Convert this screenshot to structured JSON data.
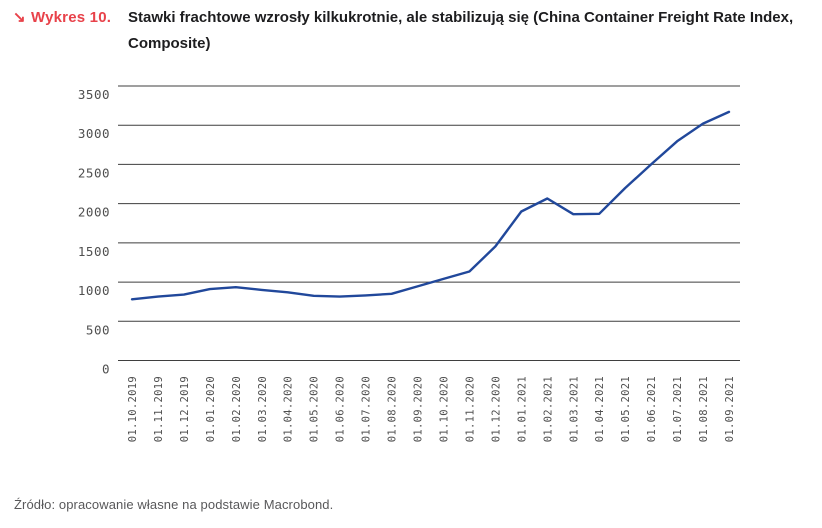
{
  "header": {
    "arrow_glyph": "↘",
    "figure_label": "Wykres 10.",
    "title": "Stawki frachtowe wzrosły kilkukrotnie, ale stabilizują się (China Container Freight Rate Index, Composite)",
    "accent_color": "#e8424a"
  },
  "footer": {
    "source": "Źródło: opracowanie własne na podstawie Macrobond."
  },
  "chart_data": {
    "type": "line",
    "title": "China Container Freight Rate Index, Composite",
    "xlabel": "",
    "ylabel": "",
    "ylim": [
      0,
      3500
    ],
    "ytick_step": 500,
    "grid": "horizontal",
    "legend_position": "none",
    "line_color": "#21489b",
    "grid_color": "#3f3f3f",
    "tick_label_color": "#4f4f4f",
    "categories": [
      "01.10.2019",
      "01.11.2019",
      "01.12.2019",
      "01.01.2020",
      "01.02.2020",
      "01.03.2020",
      "01.04.2020",
      "01.05.2020",
      "01.06.2020",
      "01.07.2020",
      "01.08.2020",
      "01.09.2020",
      "01.10.2020",
      "01.11.2020",
      "01.12.2020",
      "01.01.2021",
      "01.02.2021",
      "01.03.2021",
      "01.04.2021",
      "01.05.2021",
      "01.06.2021",
      "01.07.2021",
      "01.08.2021",
      "01.09.2021"
    ],
    "series": [
      {
        "name": "China Container Freight Rate Index (Composite)",
        "values": [
          780,
          815,
          840,
          910,
          935,
          900,
          870,
          825,
          815,
          830,
          850,
          945,
          1040,
          1135,
          1455,
          1900,
          2065,
          1865,
          1870,
          2200,
          2500,
          2795,
          3020,
          3170
        ]
      }
    ]
  }
}
